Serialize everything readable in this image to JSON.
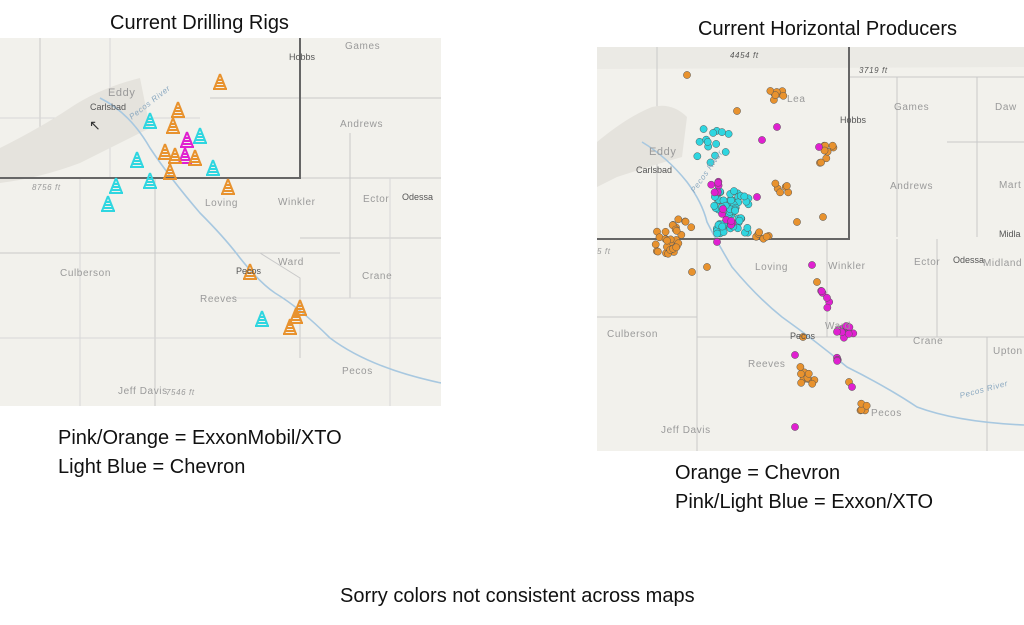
{
  "left_map": {
    "title": "Current Drilling Rigs",
    "labels": {
      "games": "Games",
      "hobbs": "Hobbs",
      "eddy": "Eddy",
      "carlsbad": "Carlsbad",
      "andrews": "Andrews",
      "elev1": "8756 ft",
      "winkler": "Winkler",
      "loving": "Loving",
      "ector": "Ector",
      "odessa": "Odessa",
      "culberson": "Culberson",
      "ward": "Ward",
      "pecos_city": "Pecos",
      "crane": "Crane",
      "reeves": "Reeves",
      "pecos_county": "Pecos",
      "jeff_davis": "Jeff Davis",
      "elev2": "7546 ft",
      "pecos_river": "Pecos River"
    },
    "legend": [
      "Pink/Orange = ExxonMobil/XTO",
      "Light Blue = Chevron"
    ],
    "colors": {
      "orange": "#e8922e",
      "pink": "#e020d0",
      "light_blue": "#2fd6e0"
    },
    "marker_icon": "drilling-rig-icon"
  },
  "right_map": {
    "title": "Current Horizontal Producers",
    "labels": {
      "elev_top": "4454 ft",
      "elev_right": "3719 ft",
      "games": "Games",
      "dawson": "Daw",
      "lea": "Lea",
      "hobbs": "Hobbs",
      "eddy": "Eddy",
      "carlsbad": "Carlsbad",
      "andrews": "Andrews",
      "martin": "Mart",
      "pecos_river": "Pecos River",
      "midland": "Midla",
      "loving": "Loving",
      "winkler": "Winkler",
      "ector": "Ector",
      "odessa": "Odessa",
      "midland2": "Midland",
      "ward": "Ward",
      "culberson": "Culberson",
      "pecos_city": "Pecos",
      "crane": "Crane",
      "upton": "Upton",
      "reeves": "Reeves",
      "pecos_county": "Pecos",
      "jeff_davis": "Jeff Davis",
      "pecos_river2": "Pecos River",
      "elev_left": "5 ft"
    },
    "legend": [
      "Orange = Chevron",
      "Pink/Light Blue = Exxon/XTO"
    ],
    "colors": {
      "orange": "#e8922e",
      "pink": "#e020d0",
      "light_blue": "#2fd6e0"
    },
    "marker_icon": "well-dot-icon"
  },
  "footer_note": "Sorry colors not consistent across maps"
}
